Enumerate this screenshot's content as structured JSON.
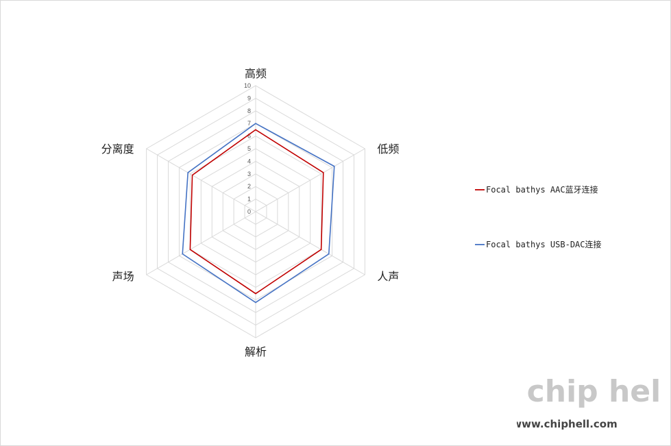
{
  "chart_data": {
    "type": "radar",
    "title": "",
    "axes": [
      "高频",
      "低频",
      "人声",
      "解析",
      "声场",
      "分离度"
    ],
    "r_ticks": [
      "0",
      "1",
      "2",
      "3",
      "4",
      "5",
      "6",
      "7",
      "8",
      "9",
      "10"
    ],
    "r_range": [
      0,
      10
    ],
    "grid": true,
    "legend_position": "right",
    "series": [
      {
        "name": "Focal bathys  AAC蓝牙连接",
        "color": "#c00000",
        "values": [
          6.5,
          6.2,
          6.0,
          6.5,
          6.0,
          5.8
        ]
      },
      {
        "name": "Focal bathys  USB-DAC连接",
        "color": "#4472c4",
        "values": [
          7.0,
          7.2,
          6.7,
          7.2,
          6.7,
          6.2
        ]
      }
    ]
  },
  "watermark": {
    "logo": "chip hell",
    "url": "www.chiphell.com"
  }
}
